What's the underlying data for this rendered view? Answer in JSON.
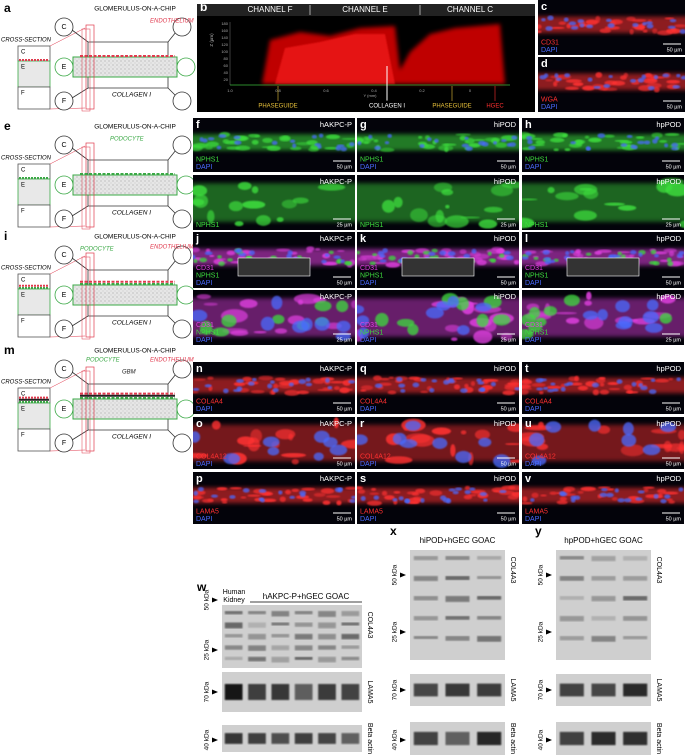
{
  "schematics": [
    {
      "letter": "a",
      "cross_section": "CROSS-SECTION",
      "section_channels": [
        "C",
        "E",
        "F"
      ],
      "chip_channels": [
        "C",
        "E",
        "F"
      ],
      "title": "GLOMERULUS-ON-A-CHIP",
      "cell_labels": [
        {
          "text": "ENDOTHELIUM",
          "color": "#e03a4e"
        }
      ],
      "collagen": "COLLAGEN I"
    },
    {
      "letter": "e",
      "cross_section": "CROSS-SECTION",
      "section_channels": [
        "C",
        "E",
        "F"
      ],
      "chip_channels": [
        "C",
        "E",
        "F"
      ],
      "title": "GLOMERULUS-ON-A-CHIP",
      "cell_labels": [
        {
          "text": "PODOCYTE",
          "color": "#3aa845"
        }
      ],
      "collagen": "COLLAGEN I"
    },
    {
      "letter": "i",
      "cross_section": "CROSS-SECTION",
      "section_channels": [
        "C",
        "E",
        "F"
      ],
      "chip_channels": [
        "C",
        "E",
        "F"
      ],
      "title": "GLOMERULUS-ON-A-CHIP",
      "cell_labels": [
        {
          "text": "PODOCYTE",
          "color": "#3aa845"
        },
        {
          "text": "ENDOTHELIUM",
          "color": "#e03a4e"
        }
      ],
      "collagen": "COLLAGEN I"
    },
    {
      "letter": "m",
      "cross_section": "CROSS-SECTION",
      "section_channels": [
        "C",
        "E",
        "F"
      ],
      "chip_channels": [
        "C",
        "E",
        "F"
      ],
      "title": "GLOMERULUS-ON-A-CHIP",
      "cell_labels": [
        {
          "text": "PODOCYTE",
          "color": "#3aa845"
        },
        {
          "text": "GBM",
          "color": "#222222"
        },
        {
          "text": "ENDOTHELIUM",
          "color": "#e03a4e"
        }
      ],
      "collagen": "COLLAGEN I"
    }
  ],
  "panel_b": {
    "letter": "b",
    "channels": [
      "CHANNEL F",
      "CHANNEL E",
      "CHANNEL C"
    ],
    "z_axis": "Z (µm)",
    "z_ticks": [
      "180",
      "160",
      "140",
      "120",
      "100",
      "80",
      "60",
      "40",
      "20"
    ],
    "y_axis": "Y (mm)",
    "y_ticks": [
      "1.0",
      "0.8",
      "0.6",
      "0.4",
      "0.2",
      "0"
    ],
    "labels": [
      {
        "text": "PHASEGUIDE",
        "color": "#e8c13a"
      },
      {
        "text": "COLLAGEN I",
        "color": "#ffffff"
      },
      {
        "text": "PHASEGUIDE",
        "color": "#e8c13a"
      },
      {
        "text": "HGEC",
        "color": "#ff3030"
      }
    ]
  },
  "micrographs": [
    {
      "letter": "c",
      "stains": [
        {
          "name": "CD31",
          "color": "#ff3030"
        },
        {
          "name": "DAPI",
          "color": "#4a6bff"
        }
      ],
      "scale": "50 µm"
    },
    {
      "letter": "d",
      "stains": [
        {
          "name": "WGA",
          "color": "#ff3030"
        },
        {
          "name": "DAPI",
          "color": "#4a6bff"
        }
      ],
      "scale": "50 µm"
    },
    {
      "letter": "f",
      "cell": "hAKPC-P",
      "stains": [
        {
          "name": "NPHS1",
          "color": "#3ddc3d"
        },
        {
          "name": "DAPI",
          "color": "#4a6bff"
        }
      ],
      "scale": "50 µm"
    },
    {
      "letter": "g",
      "cell": "hiPOD",
      "stains": [
        {
          "name": "NPHS1",
          "color": "#3ddc3d"
        },
        {
          "name": "DAPI",
          "color": "#4a6bff"
        }
      ],
      "scale": "50 µm"
    },
    {
      "letter": "h",
      "cell": "hpPOD",
      "stains": [
        {
          "name": "NPHS1",
          "color": "#3ddc3d"
        },
        {
          "name": "DAPI",
          "color": "#4a6bff"
        }
      ],
      "scale": "50 µm"
    },
    {
      "cell": "hAKPC-P",
      "stains": [
        {
          "name": "NPHS1",
          "color": "#3ddc3d"
        }
      ],
      "scale": "25 µm"
    },
    {
      "cell": "hiPOD",
      "stains": [
        {
          "name": "NPHS1",
          "color": "#3ddc3d"
        }
      ],
      "scale": "25 µm"
    },
    {
      "cell": "hpPOD",
      "stains": [
        {
          "name": "NPHS1",
          "color": "#3ddc3d"
        }
      ],
      "scale": "25 µm"
    },
    {
      "letter": "j",
      "cell": "hAKPC-P",
      "stains": [
        {
          "name": "CD31",
          "color": "#e040e0"
        },
        {
          "name": "NPHS1",
          "color": "#3ddc3d"
        },
        {
          "name": "DAPI",
          "color": "#4a6bff"
        }
      ],
      "scale": "50 µm"
    },
    {
      "letter": "k",
      "cell": "hiPOD",
      "stains": [
        {
          "name": "CD31",
          "color": "#e040e0"
        },
        {
          "name": "NPHS1",
          "color": "#3ddc3d"
        },
        {
          "name": "DAPI",
          "color": "#4a6bff"
        }
      ],
      "scale": "50 µm"
    },
    {
      "letter": "l",
      "cell": "hpPOD",
      "stains": [
        {
          "name": "CD31",
          "color": "#e040e0"
        },
        {
          "name": "NPHS1",
          "color": "#3ddc3d"
        },
        {
          "name": "DAPI",
          "color": "#4a6bff"
        }
      ],
      "scale": "50 µm"
    },
    {
      "cell": "hAKPC-P",
      "stains": [
        {
          "name": "CD31",
          "color": "#e040e0"
        },
        {
          "name": "NPHS1",
          "color": "#3ddc3d"
        },
        {
          "name": "DAPI",
          "color": "#4a6bff"
        }
      ],
      "scale": "25 µm"
    },
    {
      "cell": "hiPOD",
      "stains": [
        {
          "name": "CD31",
          "color": "#e040e0"
        },
        {
          "name": "NPHS1",
          "color": "#3ddc3d"
        },
        {
          "name": "DAPI",
          "color": "#4a6bff"
        }
      ],
      "scale": "25 µm"
    },
    {
      "cell": "hpPOD",
      "stains": [
        {
          "name": "CD31",
          "color": "#e040e0"
        },
        {
          "name": "NPHS1",
          "color": "#3ddc3d"
        },
        {
          "name": "DAPI",
          "color": "#4a6bff"
        }
      ],
      "scale": "25 µm"
    },
    {
      "letter": "n",
      "cell": "hAKPC-P",
      "stains": [
        {
          "name": "COL4A4",
          "color": "#ff3030"
        },
        {
          "name": "DAPI",
          "color": "#4a6bff"
        }
      ],
      "scale": "50 µm"
    },
    {
      "letter": "q",
      "cell": "hiPOD",
      "stains": [
        {
          "name": "COL4A4",
          "color": "#ff3030"
        },
        {
          "name": "DAPI",
          "color": "#4a6bff"
        }
      ],
      "scale": "50 µm"
    },
    {
      "letter": "t",
      "cell": "hpPOD",
      "stains": [
        {
          "name": "COL4A4",
          "color": "#ff3030"
        },
        {
          "name": "DAPI",
          "color": "#4a6bff"
        }
      ],
      "scale": "50 µm"
    },
    {
      "letter": "o",
      "cell": "hAKPC-P",
      "stains": [
        {
          "name": "COL4A12",
          "color": "#ff3030"
        },
        {
          "name": "DAPI",
          "color": "#4a6bff"
        }
      ],
      "scale": "50 µm"
    },
    {
      "letter": "r",
      "cell": "hiPOD",
      "stains": [
        {
          "name": "COL4A12",
          "color": "#ff3030"
        },
        {
          "name": "DAPI",
          "color": "#4a6bff"
        }
      ],
      "scale": "50 µm"
    },
    {
      "letter": "u",
      "cell": "hpPOD",
      "stains": [
        {
          "name": "COL4A12",
          "color": "#ff3030"
        },
        {
          "name": "DAPI",
          "color": "#4a6bff"
        }
      ],
      "scale": "50 µm"
    },
    {
      "letter": "p",
      "cell": "hAKPC-P",
      "stains": [
        {
          "name": "LAMA5",
          "color": "#ff3030"
        },
        {
          "name": "DAPI",
          "color": "#4a6bff"
        }
      ],
      "scale": "50 µm"
    },
    {
      "letter": "s",
      "cell": "hiPOD",
      "stains": [
        {
          "name": "LAMA5",
          "color": "#ff3030"
        },
        {
          "name": "DAPI",
          "color": "#4a6bff"
        }
      ],
      "scale": "50 µm"
    },
    {
      "letter": "v",
      "cell": "hpPOD",
      "stains": [
        {
          "name": "LAMA5",
          "color": "#ff3030"
        },
        {
          "name": "DAPI",
          "color": "#4a6bff"
        }
      ],
      "scale": "50 µm"
    }
  ],
  "westerns": [
    {
      "letter": "w",
      "lane_label": [
        "Human",
        "Kidney"
      ],
      "header": "hAKPC-P+hGEC GOAC",
      "markers": [
        "50 kDa",
        "25 kDa",
        "70 kDa",
        "40 kDa"
      ],
      "proteins": [
        "COL4A3",
        "LAMA5",
        "Beta actin"
      ]
    },
    {
      "letter": "x",
      "header": "hiPOD+hGEC GOAC",
      "markers": [
        "50 kDa",
        "25 kDa",
        "70 kDa",
        "40 kDa"
      ],
      "proteins": [
        "COL4A3",
        "LAMA5",
        "Beta actin"
      ]
    },
    {
      "letter": "y",
      "header": "hpPOD+hGEC GOAC",
      "markers": [
        "50 kDa",
        "25 kDa",
        "70 kDa",
        "40 kDa"
      ],
      "proteins": [
        "COL4A3",
        "LAMA5",
        "Beta actin"
      ]
    }
  ]
}
